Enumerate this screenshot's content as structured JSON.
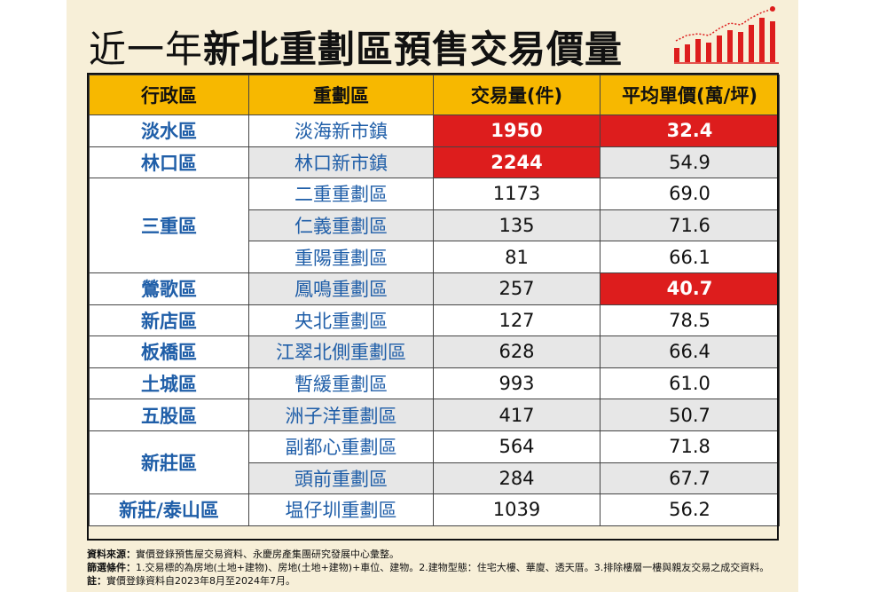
{
  "title": {
    "prefix": "近一年",
    "main": "新北重劃區預售交易價量"
  },
  "headers": [
    "行政區",
    "重劃區",
    "交易量(件)",
    "平均單價(萬/坪)"
  ],
  "rows": [
    {
      "district": "淡水區",
      "zone": "淡海新市鎮",
      "volume": "1950",
      "price": "32.4"
    },
    {
      "district": "林口區",
      "zone": "林口新市鎮",
      "volume": "2244",
      "price": "54.9"
    },
    {
      "district": "三重區",
      "zone": "二重重劃區",
      "volume": "1173",
      "price": "69.0"
    },
    {
      "district": "",
      "zone": "仁義重劃區",
      "volume": "135",
      "price": "71.6"
    },
    {
      "district": "",
      "zone": "重陽重劃區",
      "volume": "81",
      "price": "66.1"
    },
    {
      "district": "鶯歌區",
      "zone": "鳳鳴重劃區",
      "volume": "257",
      "price": "40.7"
    },
    {
      "district": "新店區",
      "zone": "央北重劃區",
      "volume": "127",
      "price": "78.5"
    },
    {
      "district": "板橋區",
      "zone": "江翠北側重劃區",
      "volume": "628",
      "price": "66.4"
    },
    {
      "district": "土城區",
      "zone": "暫緩重劃區",
      "volume": "993",
      "price": "61.0"
    },
    {
      "district": "五股區",
      "zone": "洲子洋重劃區",
      "volume": "417",
      "price": "50.7"
    },
    {
      "district": "新莊區",
      "zone": "副都心重劃區",
      "volume": "564",
      "price": "71.8"
    },
    {
      "district": "",
      "zone": "頭前重劃區",
      "volume": "284",
      "price": "67.7"
    },
    {
      "district": "新莊/泰山區",
      "zone": "塭仔圳重劃區",
      "volume": "1039",
      "price": "56.2"
    }
  ],
  "notes": {
    "source_label": "資料來源：",
    "source_text": "實價登錄預售屋交易資料、永慶房產集團研究發展中心彙整。",
    "filter_label": "篩選條件：",
    "filter_text": "1.交易標的為房地(土地+建物)、房地(土地+建物)+車位、建物。2.建物型態：住宅大樓、華廈、透天厝。3.排除樓層一樓與親友交易之成交資料。",
    "note_label": "註：",
    "note_text": "實價登錄資料自2023年8月至2024年7月。"
  },
  "colors": {
    "header_bg": "#f7b800",
    "highlight": "#dd1d1d",
    "district_text": "#1f5ea8",
    "panel_bg": "#f7efd8"
  },
  "icons": [
    "bar-chart-trend-icon"
  ]
}
